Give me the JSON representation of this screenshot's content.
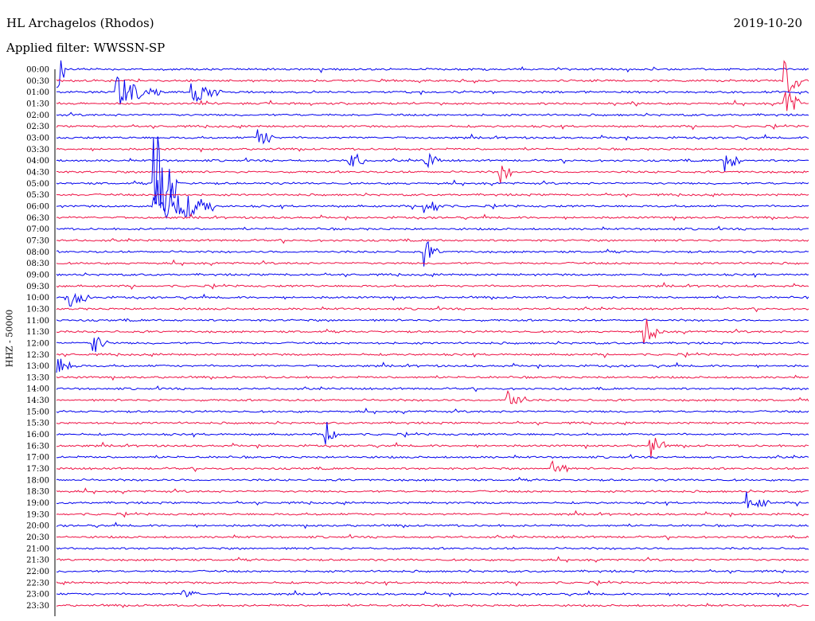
{
  "header": {
    "station": "HL Archagelos (Rhodos)",
    "filter": "Applied filter: WWSSN-SP",
    "date": "2019-10-20"
  },
  "colors": {
    "even": "#0000ee",
    "odd": "#ee1144"
  },
  "chart_data": {
    "type": "line",
    "subtype": "helicorder",
    "title": "HL Archagelos (Rhodos)",
    "subtitle": "Applied filter: WWSSN-SP",
    "date": "2019-10-20",
    "ylabel": "HHZ - 50000",
    "row_labels": [
      "00:00",
      "00:30",
      "01:00",
      "01:30",
      "02:00",
      "02:30",
      "03:00",
      "03:30",
      "04:00",
      "04:30",
      "05:00",
      "05:30",
      "06:00",
      "06:30",
      "07:00",
      "07:30",
      "08:00",
      "08:30",
      "09:00",
      "09:30",
      "10:00",
      "10:30",
      "11:00",
      "11:30",
      "12:00",
      "12:30",
      "13:00",
      "13:30",
      "14:00",
      "14:30",
      "15:00",
      "15:30",
      "16:00",
      "16:30",
      "17:00",
      "17:30",
      "18:00",
      "18:30",
      "19:00",
      "19:30",
      "20:00",
      "20:30",
      "21:00",
      "21:30",
      "22:00",
      "22:30",
      "23:00",
      "23:30"
    ],
    "row_duration_min": 30,
    "grid": false,
    "events": [
      {
        "row": 0,
        "t": 0.0,
        "amp": 6.0,
        "dur": 0.01
      },
      {
        "row": 2,
        "t": 0.08,
        "amp": 1.4,
        "dur": 0.06
      },
      {
        "row": 2,
        "t": 0.18,
        "amp": 1.0,
        "dur": 0.04
      },
      {
        "row": 1,
        "t": 0.97,
        "amp": 2.0,
        "dur": 0.02
      },
      {
        "row": 3,
        "t": 0.97,
        "amp": 1.6,
        "dur": 0.02
      },
      {
        "row": 10,
        "t": 0.13,
        "amp": 7.0,
        "dur": 0.03
      },
      {
        "row": 12,
        "t": 0.13,
        "amp": 2.6,
        "dur": 0.08
      },
      {
        "row": 6,
        "t": 0.27,
        "amp": 1.0,
        "dur": 0.02
      },
      {
        "row": 8,
        "t": 0.39,
        "amp": 1.2,
        "dur": 0.02
      },
      {
        "row": 8,
        "t": 0.49,
        "amp": 1.0,
        "dur": 0.02
      },
      {
        "row": 12,
        "t": 0.49,
        "amp": 1.0,
        "dur": 0.03
      },
      {
        "row": 16,
        "t": 0.49,
        "amp": 1.2,
        "dur": 0.02
      },
      {
        "row": 9,
        "t": 0.59,
        "amp": 1.0,
        "dur": 0.02
      },
      {
        "row": 8,
        "t": 0.89,
        "amp": 1.2,
        "dur": 0.02
      },
      {
        "row": 20,
        "t": 0.02,
        "amp": 1.0,
        "dur": 0.03
      },
      {
        "row": 23,
        "t": 0.78,
        "amp": 1.2,
        "dur": 0.03
      },
      {
        "row": 24,
        "t": 0.05,
        "amp": 0.9,
        "dur": 0.02
      },
      {
        "row": 26,
        "t": 0.0,
        "amp": 0.8,
        "dur": 0.03
      },
      {
        "row": 29,
        "t": 0.6,
        "amp": 1.0,
        "dur": 0.03
      },
      {
        "row": 32,
        "t": 0.36,
        "amp": 1.1,
        "dur": 0.02
      },
      {
        "row": 33,
        "t": 0.79,
        "amp": 1.2,
        "dur": 0.02
      },
      {
        "row": 35,
        "t": 0.66,
        "amp": 1.0,
        "dur": 0.02
      },
      {
        "row": 38,
        "t": 0.92,
        "amp": 0.9,
        "dur": 0.03
      },
      {
        "row": 46,
        "t": 0.17,
        "amp": 0.5,
        "dur": 0.02
      }
    ]
  }
}
